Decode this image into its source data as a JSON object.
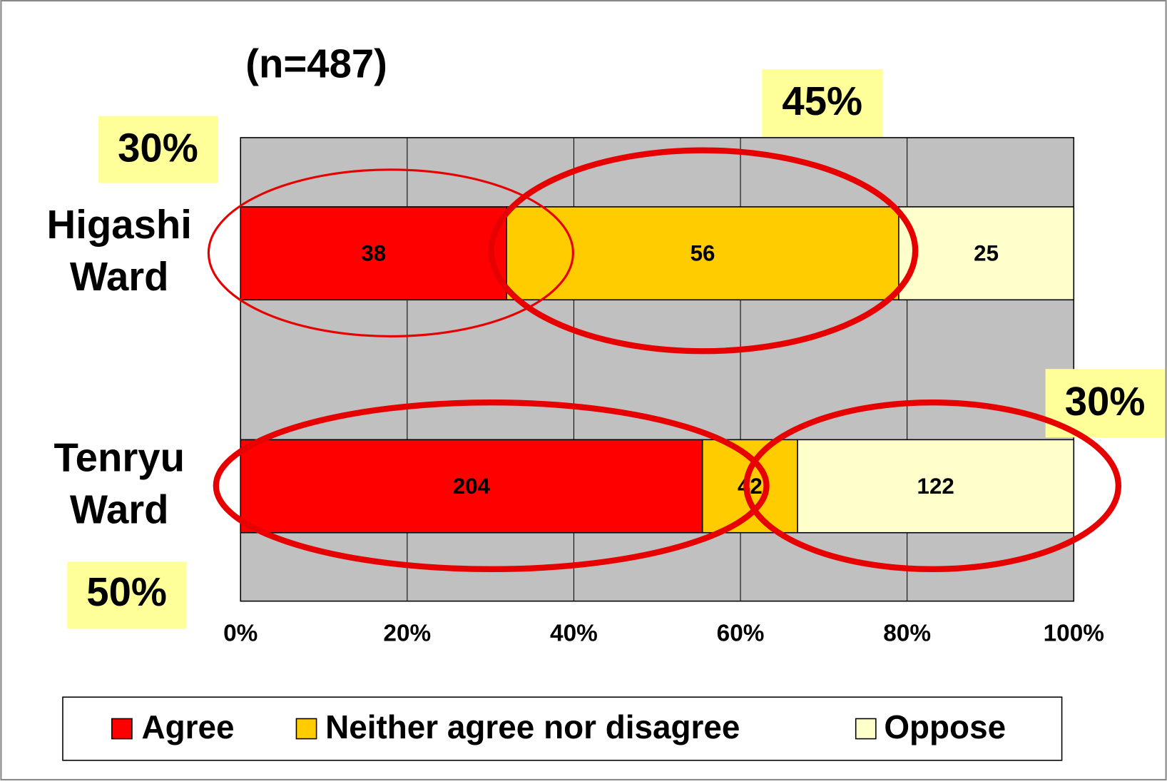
{
  "chart_data": {
    "type": "bar",
    "orientation": "horizontal",
    "stacking": "percent",
    "categories": [
      "Higashi Ward",
      "Tenryu Ward"
    ],
    "series": [
      {
        "name": "Agree",
        "color": "#ff0000",
        "values": [
          38,
          204
        ]
      },
      {
        "name": "Neither agree nor disagree",
        "color": "#ffcc00",
        "values": [
          56,
          42
        ]
      },
      {
        "name": "Oppose",
        "color": "#ffffcc",
        "values": [
          25,
          122
        ]
      }
    ],
    "xlim": [
      0,
      100
    ],
    "xticks": [
      {
        "value": 0,
        "label": "0%"
      },
      {
        "value": 20,
        "label": "20%"
      },
      {
        "value": 40,
        "label": "40%"
      },
      {
        "value": 60,
        "label": "60%"
      },
      {
        "value": 80,
        "label": "80%"
      },
      {
        "value": 100,
        "label": "100%"
      }
    ],
    "grid": true,
    "legend": "bottom",
    "annotations": [
      "(n=487)",
      "30%",
      "45%",
      "30%",
      "50%"
    ]
  }
}
